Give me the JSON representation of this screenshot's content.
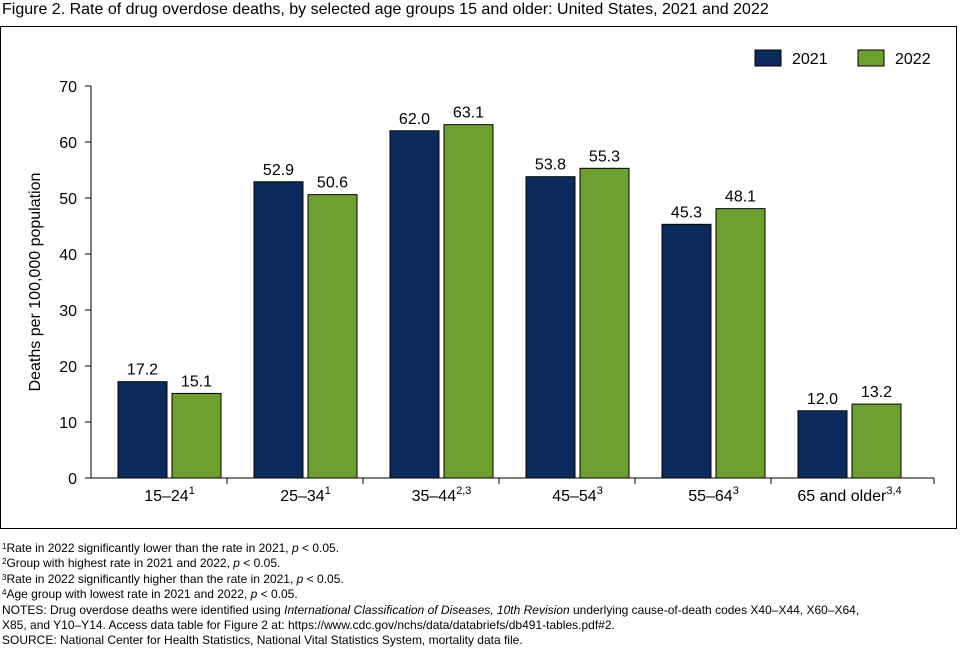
{
  "figure": {
    "title": "Figure 2. Rate of drug overdose deaths, by selected age groups 15 and older: United States, 2021 and 2022"
  },
  "chart_data": {
    "type": "bar",
    "categories": [
      "15–24",
      "25–34",
      "35–44",
      "45–54",
      "55–64",
      "65 and older"
    ],
    "category_superscripts": [
      "1",
      "1",
      "2,3",
      "3",
      "3",
      "3,4"
    ],
    "series": [
      {
        "name": "2021",
        "color": "#0c2b5c",
        "values": [
          17.2,
          52.9,
          62.0,
          53.8,
          45.3,
          12.0
        ],
        "labels": [
          "17.2",
          "52.9",
          "62.0",
          "53.8",
          "45.3",
          "12.0"
        ]
      },
      {
        "name": "2022",
        "color": "#6f9e31",
        "values": [
          15.1,
          50.6,
          63.1,
          55.3,
          48.1,
          13.2
        ],
        "labels": [
          "15.1",
          "50.6",
          "63.1",
          "55.3",
          "48.1",
          "13.2"
        ]
      }
    ],
    "ylabel": "Deaths per 100,000 population",
    "xlabel": "",
    "ylim": [
      0,
      70
    ],
    "yticks": [
      "0",
      "10",
      "20",
      "30",
      "40",
      "50",
      "60",
      "70"
    ],
    "grid": false,
    "legend_position": "top-right"
  },
  "footnotes": {
    "note1": {
      "sup": "1",
      "text": "Rate in 2022 significantly lower than the rate in 2021, ",
      "p": "p",
      "tail": " < 0.05."
    },
    "note2": {
      "sup": "2",
      "text": "Group with highest rate in 2021 and 2022, ",
      "p": "p",
      "tail": " < 0.05."
    },
    "note3": {
      "sup": "3",
      "text": "Rate in 2022 significantly higher than the rate in 2021, ",
      "p": "p",
      "tail": " < 0.05."
    },
    "note4": {
      "sup": "4",
      "text": "Age group with lowest rate in 2021 and 2022, ",
      "p": "p",
      "tail": " < 0.05."
    },
    "notes_a": "NOTES: Drug overdose deaths were identified using ",
    "notes_italic": "International Classification of Diseases, 10th Revision",
    "notes_b": " underlying cause-of-death codes X40–X44, X60–X64,",
    "notes_line2": "X85, and Y10–Y14. Access data table for Figure 2 at: https://www.cdc.gov/nchs/data/databriefs/db491-tables.pdf#2.",
    "source": "SOURCE: National Center for Health Statistics, National Vital Statistics System, mortality data file."
  }
}
